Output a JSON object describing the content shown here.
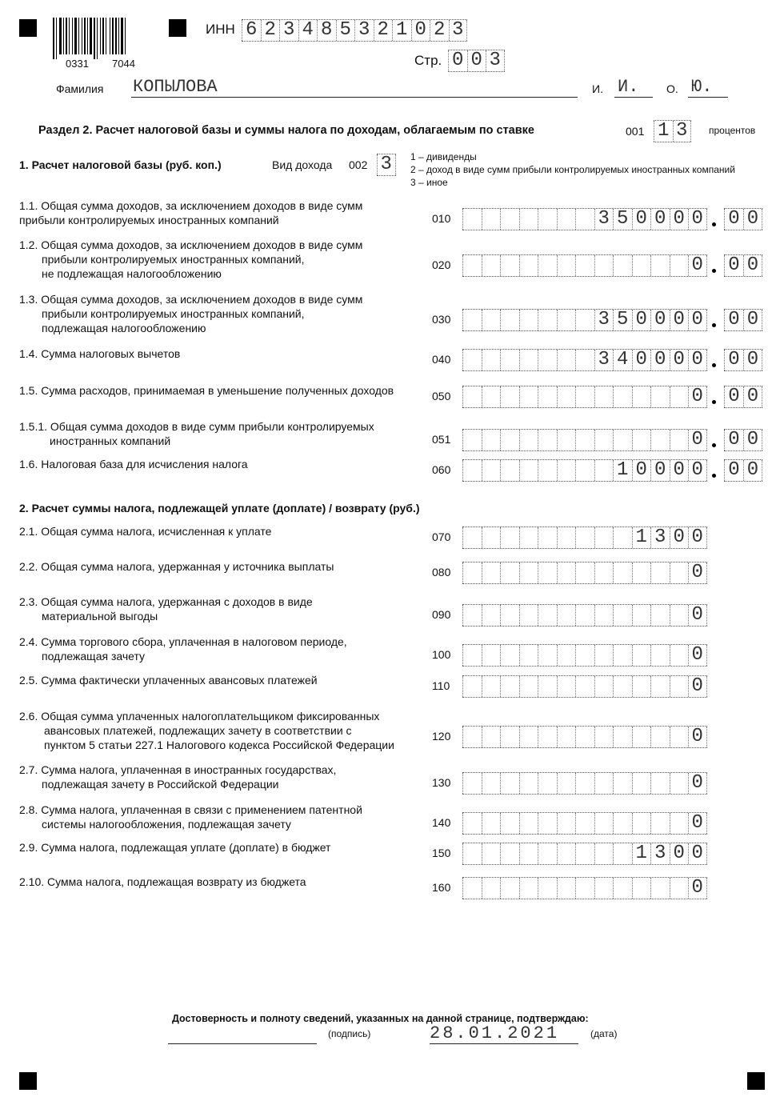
{
  "header": {
    "barcode_left": "0331",
    "barcode_right": "7044",
    "inn_label": "ИНН",
    "inn_value": "623485321023",
    "page_label": "Стр.",
    "page_value": "003",
    "surname_label": "Фамилия",
    "surname_value": "КОПЫЛОВА",
    "initial_i_label": "И.",
    "initial_i_value": "И.",
    "initial_o_label": "О.",
    "initial_o_value": "Ю."
  },
  "section": {
    "title": "Раздел 2. Расчет налоговой базы и суммы налога по доходам, облагаемым по ставке",
    "rate_code": "001",
    "rate_value": "13",
    "rate_suffix": "процентов"
  },
  "part1": {
    "title": "1. Расчет налоговой базы (руб. коп.)",
    "income_type_label": "Вид дохода",
    "income_type_code": "002",
    "income_type_value": "3",
    "income_type_options": [
      "1 – дивиденды",
      "2 – доход в виде сумм прибыли контролируемых иностранных компаний",
      "3 – иное"
    ],
    "rows": [
      {
        "code": "010",
        "lines": [
          "1.1. Общая сумма доходов, за исключением доходов в виде сумм",
          "прибыли контролируемых иностранных компаний"
        ],
        "value": "350000",
        "decimals": "00"
      },
      {
        "code": "020",
        "lines": [
          "1.2. Общая сумма доходов, за исключением доходов в виде сумм",
          "прибыли контролируемых иностранных компаний,",
          "не подлежащая налогообложению"
        ],
        "value": "0",
        "decimals": "00"
      },
      {
        "code": "030",
        "lines": [
          "1.3. Общая сумма доходов, за исключением доходов в виде сумм",
          "прибыли контролируемых иностранных компаний,",
          "подлежащая налогообложению"
        ],
        "value": "350000",
        "decimals": "00"
      },
      {
        "code": "040",
        "lines": [
          "1.4. Сумма налоговых вычетов"
        ],
        "value": "340000",
        "decimals": "00"
      },
      {
        "code": "050",
        "lines": [
          "1.5. Сумма расходов, принимаемая в уменьшение полученных доходов"
        ],
        "value": "0",
        "decimals": "00"
      },
      {
        "code": "051",
        "lines": [
          "1.5.1. Общая сумма доходов в виде сумм прибыли контролируемых",
          "иностранных компаний"
        ],
        "value": "0",
        "decimals": "00"
      },
      {
        "code": "060",
        "lines": [
          "1.6. Налоговая база для исчисления налога"
        ],
        "value": "10000",
        "decimals": "00"
      }
    ]
  },
  "part2": {
    "title": "2. Расчет суммы налога, подлежащей уплате (доплате) / возврату (руб.)",
    "rows": [
      {
        "code": "070",
        "lines": [
          "2.1. Общая сумма налога, исчисленная к уплате"
        ],
        "value": "1300"
      },
      {
        "code": "080",
        "lines": [
          "2.2. Общая сумма налога, удержанная у источника выплаты"
        ],
        "value": "0"
      },
      {
        "code": "090",
        "lines": [
          "2.3. Общая сумма налога, удержанная с доходов в виде",
          "материальной выгоды"
        ],
        "value": "0"
      },
      {
        "code": "100",
        "lines": [
          "2.4. Сумма торгового сбора, уплаченная в налоговом периоде,",
          "подлежащая зачету"
        ],
        "value": "0"
      },
      {
        "code": "110",
        "lines": [
          "2.5. Сумма фактически уплаченных авансовых платежей"
        ],
        "value": "0"
      },
      {
        "code": "120",
        "lines": [
          "2.6. Общая сумма уплаченных налогоплательщиком фиксированных",
          "авансовых платежей, подлежащих зачету в соответствии с",
          "пунктом 5 статьи 227.1 Налогового кодекса Российской Федерации"
        ],
        "value": "0"
      },
      {
        "code": "130",
        "lines": [
          "2.7. Сумма налога, уплаченная в иностранных государствах,",
          "подлежащая зачету в Российской Федерации"
        ],
        "value": "0"
      },
      {
        "code": "140",
        "lines": [
          "2.8. Сумма налога, уплаченная в связи с применением патентной",
          "системы налогообложения, подлежащая зачету"
        ],
        "value": "0"
      },
      {
        "code": "150",
        "lines": [
          "2.9. Сумма налога, подлежащая уплате (доплате) в бюджет"
        ],
        "value": "1300"
      },
      {
        "code": "160",
        "lines": [
          "2.10. Сумма налога, подлежащая возврату из бюджета"
        ],
        "value": "0"
      }
    ]
  },
  "footer": {
    "confirmation": "Достоверность и полноту сведений, указанных на данной странице, подтверждаю:",
    "signature_label": "(подпись)",
    "date_value": "28.01.2021",
    "date_label": "(дата)"
  }
}
